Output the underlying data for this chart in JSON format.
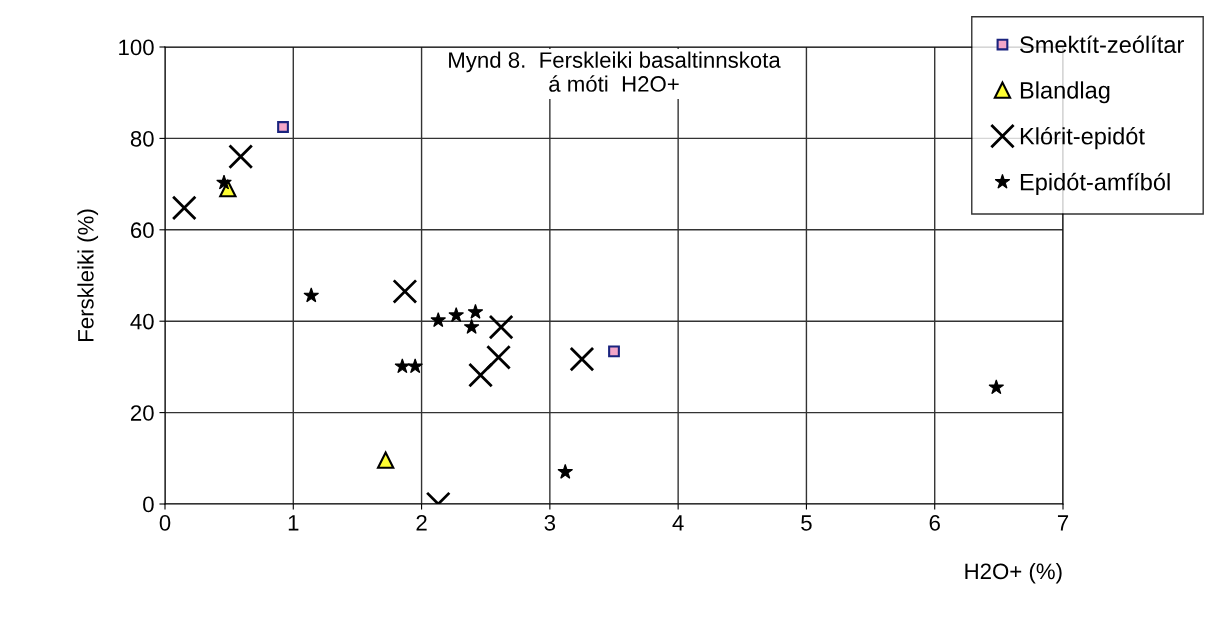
{
  "chart_data": {
    "type": "scatter",
    "title": "Mynd 8.  Ferskleiki basaltinnskota\ná móti  H2O+",
    "xlabel": "H2O+ (%)",
    "ylabel": "Ferskleiki (%)",
    "xlim": [
      0,
      7
    ],
    "xticks": [
      0,
      1,
      2,
      3,
      4,
      5,
      6,
      7
    ],
    "ylim": [
      0,
      100
    ],
    "yticks": [
      0,
      20,
      40,
      60,
      80,
      100
    ],
    "grid": true,
    "legend": "top right",
    "series": [
      {
        "name": "Smektít-zeólítar",
        "color": "#f4a6c8",
        "marker": "square",
        "x": [
          0.92,
          3.5
        ],
        "values": [
          82.5,
          33.4
        ]
      },
      {
        "name": "Blandlag",
        "color": "#ffff33",
        "marker": "triangle",
        "x": [
          0.49,
          1.72
        ],
        "values": [
          69,
          9.6
        ]
      },
      {
        "name": "Klórit-epidót",
        "color": "#000000",
        "marker": "cross",
        "x": [
          0.15,
          0.59,
          1.87,
          2.62,
          2.6,
          2.46,
          3.25,
          2.13
        ],
        "values": [
          64.8,
          76,
          46.5,
          38.7,
          32.1,
          28.2,
          31.7,
          0
        ]
      },
      {
        "name": "Epidót-amfíból",
        "color": "#000000",
        "marker": "star",
        "x": [
          0.46,
          1.14,
          1.85,
          1.95,
          2.13,
          2.27,
          2.39,
          2.42,
          3.12,
          6.48
        ],
        "values": [
          70.3,
          45.6,
          30.1,
          30.1,
          40.2,
          41.3,
          38.7,
          42,
          7,
          25.5
        ]
      }
    ]
  }
}
